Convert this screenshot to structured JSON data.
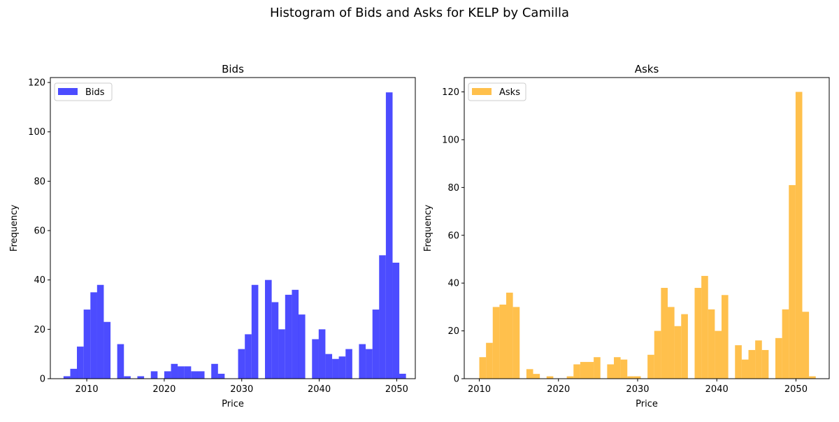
{
  "figure": {
    "suptitle": "Histogram of Bids and Asks for KELP by Camilla"
  },
  "chart_data": [
    {
      "type": "bar",
      "title": "Bids",
      "xlabel": "Price",
      "ylabel": "Frequency",
      "legend": {
        "label": "Bids",
        "placement": "upper-left"
      },
      "color": "#0000ff",
      "bar_opacity": 0.7,
      "xlim": [
        2005.3,
        2052.4
      ],
      "ylim": [
        0,
        122
      ],
      "xticks": [
        2010,
        2020,
        2030,
        2040,
        2050
      ],
      "yticks": [
        0,
        20,
        40,
        60,
        80,
        100,
        120
      ],
      "bin_width": 0.867,
      "bins": [
        {
          "x": 2007.0,
          "y": 1
        },
        {
          "x": 2007.87,
          "y": 4
        },
        {
          "x": 2008.73,
          "y": 13
        },
        {
          "x": 2009.6,
          "y": 28
        },
        {
          "x": 2010.47,
          "y": 35
        },
        {
          "x": 2011.33,
          "y": 38
        },
        {
          "x": 2012.2,
          "y": 23
        },
        {
          "x": 2013.07,
          "y": 0
        },
        {
          "x": 2013.93,
          "y": 14
        },
        {
          "x": 2014.8,
          "y": 1
        },
        {
          "x": 2015.67,
          "y": 0
        },
        {
          "x": 2016.53,
          "y": 1
        },
        {
          "x": 2017.4,
          "y": 0
        },
        {
          "x": 2018.27,
          "y": 3
        },
        {
          "x": 2019.13,
          "y": 0
        },
        {
          "x": 2020.0,
          "y": 3
        },
        {
          "x": 2020.87,
          "y": 6
        },
        {
          "x": 2021.73,
          "y": 5
        },
        {
          "x": 2022.6,
          "y": 5
        },
        {
          "x": 2023.47,
          "y": 3
        },
        {
          "x": 2024.33,
          "y": 3
        },
        {
          "x": 2025.2,
          "y": 0
        },
        {
          "x": 2026.07,
          "y": 6
        },
        {
          "x": 2026.93,
          "y": 2
        },
        {
          "x": 2027.8,
          "y": 0
        },
        {
          "x": 2028.67,
          "y": 0
        },
        {
          "x": 2029.53,
          "y": 12
        },
        {
          "x": 2030.4,
          "y": 18
        },
        {
          "x": 2031.27,
          "y": 38
        },
        {
          "x": 2032.13,
          "y": 0
        },
        {
          "x": 2033.0,
          "y": 40
        },
        {
          "x": 2033.87,
          "y": 31
        },
        {
          "x": 2034.73,
          "y": 20
        },
        {
          "x": 2035.6,
          "y": 34
        },
        {
          "x": 2036.47,
          "y": 36
        },
        {
          "x": 2037.33,
          "y": 26
        },
        {
          "x": 2038.2,
          "y": 0
        },
        {
          "x": 2039.07,
          "y": 16
        },
        {
          "x": 2039.93,
          "y": 20
        },
        {
          "x": 2040.8,
          "y": 10
        },
        {
          "x": 2041.67,
          "y": 8
        },
        {
          "x": 2042.53,
          "y": 9
        },
        {
          "x": 2043.4,
          "y": 12
        },
        {
          "x": 2044.27,
          "y": 0
        },
        {
          "x": 2045.13,
          "y": 14
        },
        {
          "x": 2046.0,
          "y": 12
        },
        {
          "x": 2046.87,
          "y": 28
        },
        {
          "x": 2047.73,
          "y": 50
        },
        {
          "x": 2048.6,
          "y": 116
        },
        {
          "x": 2049.47,
          "y": 47
        },
        {
          "x": 2050.33,
          "y": 2
        }
      ]
    },
    {
      "type": "bar",
      "title": "Asks",
      "xlabel": "Price",
      "ylabel": "Frequency",
      "legend": {
        "label": "Asks",
        "placement": "upper-left"
      },
      "color": "#ffa500",
      "bar_opacity": 0.7,
      "xlim": [
        2008.1,
        2054.2
      ],
      "ylim": [
        0,
        126
      ],
      "xticks": [
        2010,
        2020,
        2030,
        2040,
        2050
      ],
      "yticks": [
        0,
        20,
        40,
        60,
        80,
        100,
        120
      ],
      "bin_width": 0.85,
      "bins": [
        {
          "x": 2010.0,
          "y": 9
        },
        {
          "x": 2010.85,
          "y": 15
        },
        {
          "x": 2011.7,
          "y": 30
        },
        {
          "x": 2012.55,
          "y": 31
        },
        {
          "x": 2013.4,
          "y": 36
        },
        {
          "x": 2014.25,
          "y": 30
        },
        {
          "x": 2015.1,
          "y": 0
        },
        {
          "x": 2015.95,
          "y": 4
        },
        {
          "x": 2016.8,
          "y": 2
        },
        {
          "x": 2017.65,
          "y": 0
        },
        {
          "x": 2018.5,
          "y": 1
        },
        {
          "x": 2019.35,
          "y": 0
        },
        {
          "x": 2020.2,
          "y": 0
        },
        {
          "x": 2021.05,
          "y": 1
        },
        {
          "x": 2021.9,
          "y": 6
        },
        {
          "x": 2022.75,
          "y": 7
        },
        {
          "x": 2023.6,
          "y": 7
        },
        {
          "x": 2024.45,
          "y": 9
        },
        {
          "x": 2025.3,
          "y": 0
        },
        {
          "x": 2026.15,
          "y": 6
        },
        {
          "x": 2027.0,
          "y": 9
        },
        {
          "x": 2027.85,
          "y": 8
        },
        {
          "x": 2028.7,
          "y": 1
        },
        {
          "x": 2029.55,
          "y": 1
        },
        {
          "x": 2030.4,
          "y": 0
        },
        {
          "x": 2031.25,
          "y": 10
        },
        {
          "x": 2032.1,
          "y": 20
        },
        {
          "x": 2032.95,
          "y": 38
        },
        {
          "x": 2033.8,
          "y": 30
        },
        {
          "x": 2034.65,
          "y": 22
        },
        {
          "x": 2035.5,
          "y": 27
        },
        {
          "x": 2036.35,
          "y": 0
        },
        {
          "x": 2037.2,
          "y": 38
        },
        {
          "x": 2038.05,
          "y": 43
        },
        {
          "x": 2038.9,
          "y": 29
        },
        {
          "x": 2039.75,
          "y": 20
        },
        {
          "x": 2040.6,
          "y": 35
        },
        {
          "x": 2041.45,
          "y": 0
        },
        {
          "x": 2042.3,
          "y": 14
        },
        {
          "x": 2043.15,
          "y": 8
        },
        {
          "x": 2044.0,
          "y": 12
        },
        {
          "x": 2044.85,
          "y": 16
        },
        {
          "x": 2045.7,
          "y": 12
        },
        {
          "x": 2046.55,
          "y": 0
        },
        {
          "x": 2047.4,
          "y": 17
        },
        {
          "x": 2048.25,
          "y": 29
        },
        {
          "x": 2049.1,
          "y": 81
        },
        {
          "x": 2049.95,
          "y": 120
        },
        {
          "x": 2050.8,
          "y": 28
        },
        {
          "x": 2051.65,
          "y": 1
        }
      ]
    }
  ]
}
